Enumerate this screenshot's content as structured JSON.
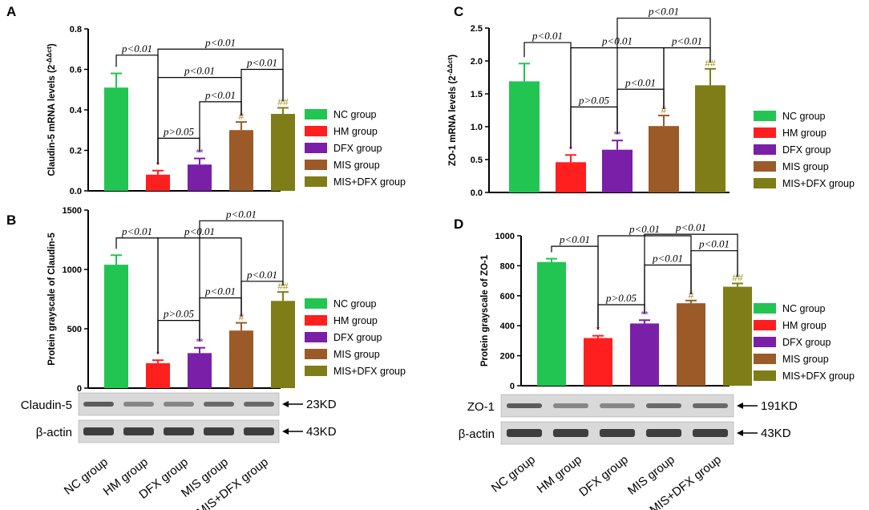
{
  "groups": [
    "NC group",
    "HM group",
    "DFX group",
    "MIS group",
    "MIS+DFX group"
  ],
  "colors": [
    "#22c552",
    "#ff1f1f",
    "#7a1fa8",
    "#9b5a28",
    "#7f7d18"
  ],
  "sig_colors": {
    "star": "#ff2020",
    "dstar": "#8a2ab0",
    "hash": "#a0782a",
    "dhash": "#a09020"
  },
  "chart_data": [
    {
      "panel": "A",
      "type": "bar",
      "ylabel": "Claudin-5 mRNA levels (2",
      "ylabel_sup": "-ΔΔct",
      "ylabel_close": ")",
      "ylim": [
        0,
        0.8
      ],
      "yticks": [
        "0.0",
        "0.2",
        "0.4",
        "0.6",
        "0.8"
      ],
      "ytick_values": [
        0,
        0.2,
        0.4,
        0.6,
        0.8
      ],
      "categories": [
        "NC group",
        "HM group",
        "DFX group",
        "MIS group",
        "MIS+DFX group"
      ],
      "values": [
        0.51,
        0.08,
        0.13,
        0.3,
        0.38
      ],
      "errors": [
        0.07,
        0.02,
        0.03,
        0.04,
        0.03
      ],
      "sig_marks": [
        "",
        "*",
        "**",
        "#",
        "##"
      ],
      "comparisons": [
        {
          "from": 0,
          "to": 1,
          "label": "p<0.01",
          "y": 0.67
        },
        {
          "from": 1,
          "to": 2,
          "label": "p>0.05",
          "y": 0.26
        },
        {
          "from": 1,
          "to": 3,
          "label": "p<0.01",
          "y": 0.56
        },
        {
          "from": 3,
          "to": 4,
          "label": "p<0.01",
          "y": 0.6
        },
        {
          "from": 2,
          "to": 3,
          "label": "p<0.01",
          "y": 0.44
        },
        {
          "from": 1,
          "to": 4,
          "label": "p<0.01",
          "y": 0.7
        }
      ]
    },
    {
      "panel": "B",
      "type": "bar",
      "ylabel": "Protein grayscale of Claudin-5",
      "ylim": [
        0,
        1500
      ],
      "yticks": [
        "0",
        "500",
        "1000",
        "1500"
      ],
      "ytick_values": [
        0,
        500,
        1000,
        1500
      ],
      "categories": [
        "NC group",
        "HM group",
        "DFX group",
        "MIS group",
        "MIS+DFX group"
      ],
      "values": [
        1040,
        210,
        295,
        485,
        735
      ],
      "errors": [
        80,
        25,
        45,
        65,
        75
      ],
      "sig_marks": [
        "",
        "*",
        "**",
        "#",
        "##"
      ],
      "comparisons": [
        {
          "from": 0,
          "to": 1,
          "label": "p<0.01",
          "y": 1265
        },
        {
          "from": 1,
          "to": 2,
          "label": "p>0.05",
          "y": 570
        },
        {
          "from": 1,
          "to": 3,
          "label": "p<0.01",
          "y": 1265
        },
        {
          "from": 2,
          "to": 3,
          "label": "p<0.01",
          "y": 760
        },
        {
          "from": 3,
          "to": 4,
          "label": "p<0.01",
          "y": 900
        },
        {
          "from": 2,
          "to": 4,
          "label": "p<0.01",
          "y": 1410
        }
      ],
      "blot_rows": [
        {
          "label": "Claudin-5",
          "kd": "23KD"
        },
        {
          "label": "β-actin",
          "kd": "43KD"
        }
      ]
    },
    {
      "panel": "C",
      "type": "bar",
      "ylabel": "ZO-1 mRNA levels (2",
      "ylabel_sup": "-ΔΔct",
      "ylabel_close": ")",
      "ylim": [
        0,
        2.5
      ],
      "yticks": [
        "0.0",
        "0.5",
        "1.0",
        "1.5",
        "2.0",
        "2.5"
      ],
      "ytick_values": [
        0,
        0.5,
        1.0,
        1.5,
        2.0,
        2.5
      ],
      "categories": [
        "NC group",
        "HM group",
        "DFX group",
        "MIS group",
        "MIS+DFX group"
      ],
      "values": [
        1.69,
        0.46,
        0.65,
        1.01,
        1.63
      ],
      "errors": [
        0.27,
        0.11,
        0.14,
        0.16,
        0.25
      ],
      "sig_marks": [
        "",
        "*",
        "**",
        "#",
        "##"
      ],
      "comparisons": [
        {
          "from": 0,
          "to": 1,
          "label": "p<0.01",
          "y": 2.28
        },
        {
          "from": 1,
          "to": 2,
          "label": "p>0.05",
          "y": 1.3
        },
        {
          "from": 2,
          "to": 3,
          "label": "p<0.01",
          "y": 1.57
        },
        {
          "from": 1,
          "to": 3,
          "label": "p<0.01",
          "y": 2.2
        },
        {
          "from": 3,
          "to": 4,
          "label": "p<0.01",
          "y": 2.2
        },
        {
          "from": 2,
          "to": 4,
          "label": "p<0.01",
          "y": 2.65
        }
      ]
    },
    {
      "panel": "D",
      "type": "bar",
      "ylabel": "Protein grayscale of ZO-1",
      "ylim": [
        0,
        1000
      ],
      "yticks": [
        "0",
        "200",
        "400",
        "600",
        "800",
        "1000"
      ],
      "ytick_values": [
        0,
        200,
        400,
        600,
        800,
        1000
      ],
      "categories": [
        "NC group",
        "HM group",
        "DFX group",
        "MIS group",
        "MIS+DFX group"
      ],
      "values": [
        825,
        318,
        415,
        550,
        660
      ],
      "errors": [
        22,
        15,
        22,
        18,
        22
      ],
      "sig_marks": [
        "",
        "*",
        "**",
        "#",
        "##"
      ],
      "comparisons": [
        {
          "from": 0,
          "to": 1,
          "label": "p<0.01",
          "y": 930
        },
        {
          "from": 1,
          "to": 2,
          "label": "p>0.05",
          "y": 540
        },
        {
          "from": 2,
          "to": 3,
          "label": "p<0.01",
          "y": 805
        },
        {
          "from": 3,
          "to": 4,
          "label": "p<0.01",
          "y": 900
        },
        {
          "from": 1,
          "to": 3,
          "label": "p<0.01",
          "y": 1000
        },
        {
          "from": 2,
          "to": 4,
          "label": "p<0.01",
          "y": 1010
        }
      ],
      "blot_rows": [
        {
          "label": "ZO-1",
          "kd": "191KD"
        },
        {
          "label": "β-actin",
          "kd": "43KD"
        }
      ]
    }
  ]
}
